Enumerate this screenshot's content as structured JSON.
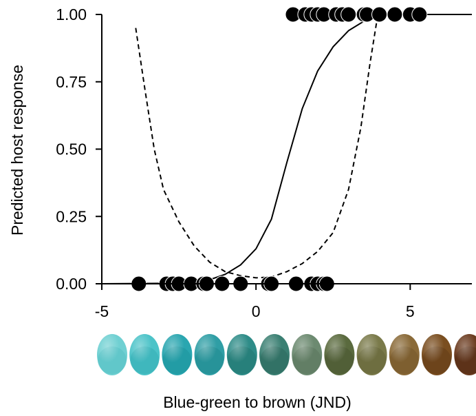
{
  "chart_data": {
    "type": "scatter",
    "xlabel": "Blue-green to brown (JND)",
    "ylabel": "Predicted host response",
    "xlim": [
      -5,
      7
    ],
    "ylim": [
      0,
      1
    ],
    "x_ticks": [
      {
        "value": -5,
        "label": "-5"
      },
      {
        "value": 0,
        "label": "0"
      },
      {
        "value": 5,
        "label": "5"
      }
    ],
    "y_ticks": [
      {
        "value": 0,
        "label": "0.00"
      },
      {
        "value": 0.25,
        "label": "0.25"
      },
      {
        "value": 0.5,
        "label": "0.50"
      },
      {
        "value": 0.75,
        "label": "0.75"
      },
      {
        "value": 1,
        "label": "1.00"
      }
    ],
    "grid": false,
    "legend": "none",
    "series": [
      {
        "kind": "points",
        "color": "#000000",
        "points": [
          {
            "x": -3.8,
            "y": 0
          },
          {
            "x": -2.9,
            "y": 0
          },
          {
            "x": -2.7,
            "y": 0
          },
          {
            "x": -2.5,
            "y": 0
          },
          {
            "x": -2.1,
            "y": 0
          },
          {
            "x": -1.7,
            "y": 0
          },
          {
            "x": -1.6,
            "y": 0
          },
          {
            "x": -1.1,
            "y": 0
          },
          {
            "x": -0.5,
            "y": 0
          },
          {
            "x": 0.4,
            "y": 0
          },
          {
            "x": 0.5,
            "y": 0
          },
          {
            "x": 1.3,
            "y": 0
          },
          {
            "x": 1.8,
            "y": 0
          },
          {
            "x": 2.0,
            "y": 0
          },
          {
            "x": 2.2,
            "y": 0
          },
          {
            "x": 2.3,
            "y": 0
          },
          {
            "x": 1.2,
            "y": 1
          },
          {
            "x": 1.6,
            "y": 1
          },
          {
            "x": 1.8,
            "y": 1
          },
          {
            "x": 2.0,
            "y": 1
          },
          {
            "x": 2.2,
            "y": 1
          },
          {
            "x": 2.6,
            "y": 1
          },
          {
            "x": 2.8,
            "y": 1
          },
          {
            "x": 3.0,
            "y": 1
          },
          {
            "x": 3.5,
            "y": 1
          },
          {
            "x": 3.6,
            "y": 1
          },
          {
            "x": 4.0,
            "y": 1
          },
          {
            "x": 4.5,
            "y": 1
          },
          {
            "x": 5.0,
            "y": 1
          },
          {
            "x": 5.3,
            "y": 1
          }
        ]
      },
      {
        "kind": "line",
        "style": "solid",
        "color": "#000000",
        "points": [
          {
            "x": -5,
            "y": 0
          },
          {
            "x": -2.5,
            "y": 0.002
          },
          {
            "x": -2.0,
            "y": 0.005
          },
          {
            "x": -1.5,
            "y": 0.015
          },
          {
            "x": -1.0,
            "y": 0.035
          },
          {
            "x": -0.5,
            "y": 0.07
          },
          {
            "x": 0,
            "y": 0.13
          },
          {
            "x": 0.5,
            "y": 0.24
          },
          {
            "x": 1.0,
            "y": 0.45
          },
          {
            "x": 1.5,
            "y": 0.65
          },
          {
            "x": 2.0,
            "y": 0.79
          },
          {
            "x": 2.5,
            "y": 0.88
          },
          {
            "x": 3.0,
            "y": 0.94
          },
          {
            "x": 3.5,
            "y": 0.975
          },
          {
            "x": 4.0,
            "y": 0.995
          },
          {
            "x": 4.5,
            "y": 1.0
          },
          {
            "x": 7,
            "y": 1.0
          }
        ]
      },
      {
        "kind": "line",
        "style": "dashed",
        "color": "#000000",
        "points": [
          {
            "x": -3.9,
            "y": 0.95
          },
          {
            "x": -3.6,
            "y": 0.72
          },
          {
            "x": -3.3,
            "y": 0.5
          },
          {
            "x": -3.0,
            "y": 0.35
          },
          {
            "x": -2.5,
            "y": 0.23
          },
          {
            "x": -2.0,
            "y": 0.14
          },
          {
            "x": -1.5,
            "y": 0.08
          },
          {
            "x": -1.0,
            "y": 0.045
          },
          {
            "x": -0.5,
            "y": 0.03
          },
          {
            "x": 0,
            "y": 0.022
          },
          {
            "x": 0.5,
            "y": 0.025
          },
          {
            "x": 1.0,
            "y": 0.045
          },
          {
            "x": 1.5,
            "y": 0.075
          },
          {
            "x": 2.0,
            "y": 0.12
          },
          {
            "x": 2.5,
            "y": 0.19
          },
          {
            "x": 3.0,
            "y": 0.35
          },
          {
            "x": 3.4,
            "y": 0.58
          },
          {
            "x": 3.7,
            "y": 0.82
          },
          {
            "x": 3.95,
            "y": 1.0
          }
        ]
      }
    ],
    "eggs": [
      {
        "color": "#6fd0d2",
        "shade": "#4fbcc0"
      },
      {
        "color": "#4cc3c8",
        "shade": "#31a9b0"
      },
      {
        "color": "#2aa6b0",
        "shade": "#18909a"
      },
      {
        "color": "#2f9ea5",
        "shade": "#1f858c"
      },
      {
        "color": "#2e8c88",
        "shade": "#1f706c"
      },
      {
        "color": "#3a7f72",
        "shade": "#2a6458"
      },
      {
        "color": "#6c8a70",
        "shade": "#566e58"
      },
      {
        "color": "#5a6a3e",
        "shade": "#46522e"
      },
      {
        "color": "#7a7a4a",
        "shade": "#5f5f36"
      },
      {
        "color": "#8a6a38",
        "shade": "#6e5228"
      },
      {
        "color": "#7a4e20",
        "shade": "#5e3a16"
      },
      {
        "color": "#6a3a1e",
        "shade": "#4e2a14"
      }
    ]
  }
}
